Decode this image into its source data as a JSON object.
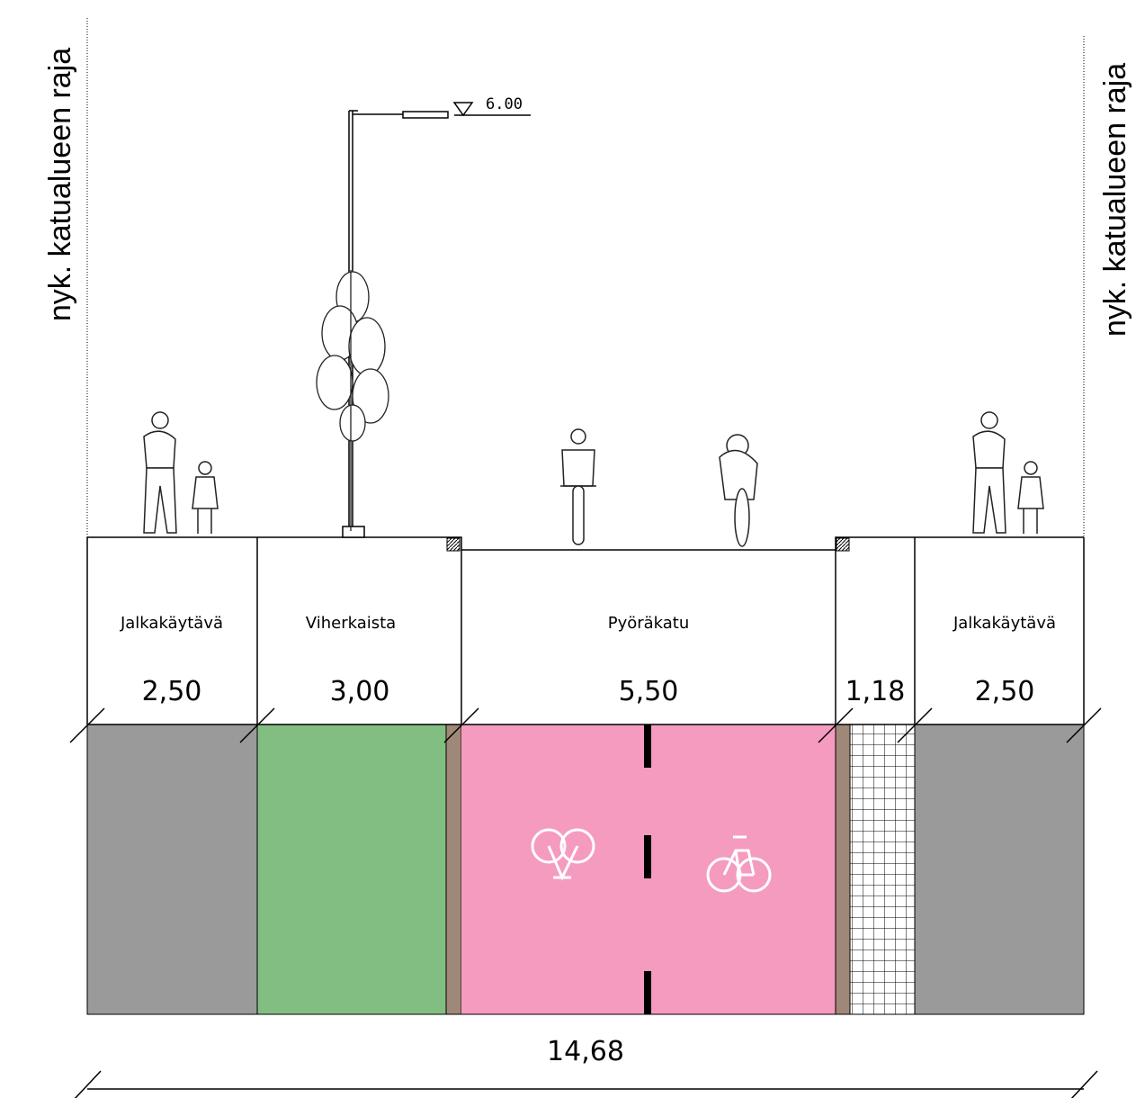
{
  "boundary_left": "nyk. katualueen raja",
  "boundary_right": "nyk. katualueen raja",
  "level_marker": "6.00",
  "sections": [
    {
      "name": "Jalkakäytävä",
      "width": "2,50"
    },
    {
      "name": "Viherkaista",
      "width": "3,00"
    },
    {
      "name": "Pyöräkatu",
      "width": "5,50"
    },
    {
      "width": "1,18"
    },
    {
      "name": "Jalkakäytävä",
      "width": "2,50"
    }
  ],
  "total_width": "14,68"
}
